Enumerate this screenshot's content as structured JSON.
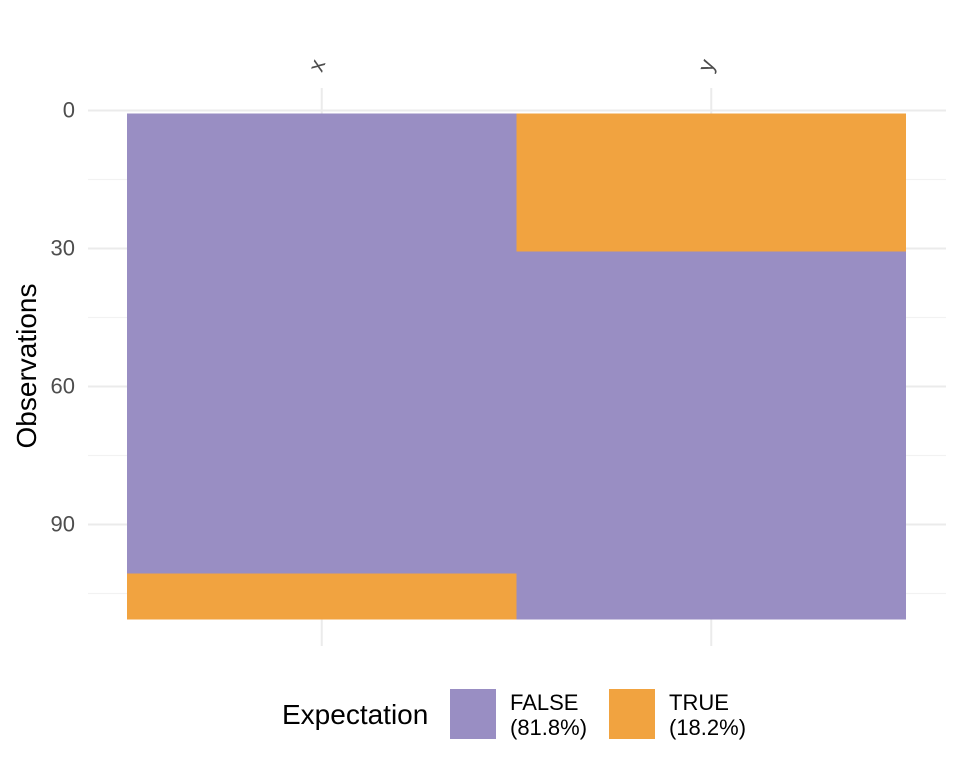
{
  "chart_data": {
    "type": "heatmap",
    "columns": [
      "x",
      "y"
    ],
    "ylabel": "Observations",
    "xlabel": "",
    "y_ticks": [
      0,
      30,
      60,
      90
    ],
    "ylim": [
      0,
      110
    ],
    "y_reversed": true,
    "grid": true,
    "legend": {
      "title": "Expectation",
      "position": "bottom",
      "entries": [
        {
          "key": "FALSE",
          "label_line1": "FALSE",
          "label_line2": "(81.8%)",
          "color": "#998ec3"
        },
        {
          "key": "TRUE",
          "label_line1": "TRUE",
          "label_line2": "(18.2%)",
          "color": "#f1a340"
        }
      ]
    },
    "segments": [
      {
        "column": "x",
        "start": 0,
        "end": 100,
        "value": "FALSE"
      },
      {
        "column": "x",
        "start": 100,
        "end": 110,
        "value": "TRUE"
      },
      {
        "column": "y",
        "start": 0,
        "end": 30,
        "value": "TRUE"
      },
      {
        "column": "y",
        "start": 30,
        "end": 110,
        "value": "FALSE"
      }
    ]
  }
}
